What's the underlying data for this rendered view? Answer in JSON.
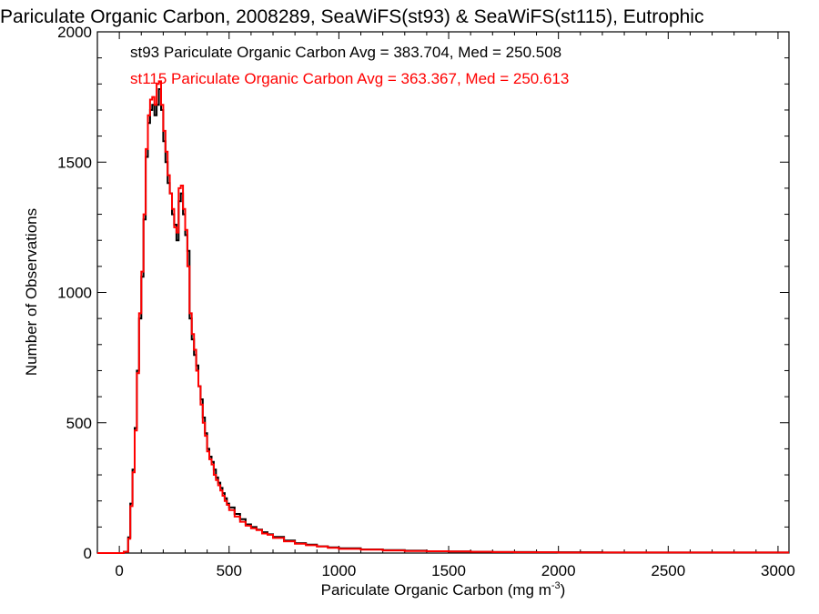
{
  "chart_data": {
    "type": "line",
    "step": true,
    "title": "Pariculate Organic Carbon, 2008289, SeaWiFS(st93) & SeaWiFS(st115), Eutrophic",
    "xlabel": "Pariculate Organic Carbon (mg m",
    "xlabel_sup": "-3",
    "xlabel_close": ")",
    "ylabel": "Number of Observations",
    "xlim": [
      -100,
      3050
    ],
    "ylim": [
      0,
      2000
    ],
    "xticks": [
      0,
      500,
      1000,
      1500,
      2000,
      2500,
      3000
    ],
    "yticks": [
      0,
      500,
      1000,
      1500,
      2000
    ],
    "grid": false,
    "x": [
      -100,
      0,
      20,
      40,
      50,
      60,
      70,
      80,
      90,
      100,
      110,
      120,
      130,
      140,
      150,
      160,
      170,
      180,
      190,
      200,
      210,
      220,
      230,
      240,
      250,
      260,
      270,
      280,
      290,
      300,
      310,
      320,
      330,
      340,
      350,
      360,
      370,
      380,
      390,
      400,
      410,
      420,
      430,
      440,
      450,
      460,
      470,
      480,
      490,
      500,
      525,
      550,
      575,
      600,
      625,
      650,
      675,
      700,
      750,
      800,
      850,
      900,
      950,
      1000,
      1100,
      1200,
      1300,
      1400,
      1500,
      1600,
      1700,
      1800,
      1900,
      2000,
      2200,
      2400,
      2600,
      2800,
      3050
    ],
    "series": [
      {
        "name": "st93",
        "label": "st93 Pariculate Organic Carbon Avg = 383.704, Med = 250.508",
        "color": "#000000",
        "values": [
          0,
          0,
          5,
          60,
          190,
          320,
          480,
          700,
          900,
          1060,
          1280,
          1520,
          1650,
          1700,
          1720,
          1680,
          1720,
          1780,
          1700,
          1580,
          1500,
          1420,
          1380,
          1300,
          1260,
          1200,
          1350,
          1380,
          1300,
          1220,
          1160,
          900,
          820,
          760,
          720,
          640,
          590,
          520,
          460,
          400,
          370,
          350,
          320,
          290,
          270,
          250,
          230,
          210,
          190,
          175,
          150,
          130,
          110,
          100,
          90,
          80,
          72,
          62,
          48,
          38,
          32,
          26,
          22,
          18,
          14,
          11,
          9,
          7,
          6,
          5,
          4,
          4,
          3,
          3,
          2,
          2,
          2,
          2,
          2
        ]
      },
      {
        "name": "st115",
        "label": "st115 Pariculate Organic Carbon Avg = 363.367, Med = 250.613",
        "color": "#ff0000",
        "values": [
          0,
          0,
          5,
          55,
          180,
          310,
          470,
          690,
          920,
          1080,
          1300,
          1550,
          1680,
          1740,
          1750,
          1720,
          1800,
          1810,
          1720,
          1620,
          1540,
          1450,
          1380,
          1320,
          1250,
          1230,
          1400,
          1410,
          1320,
          1240,
          1100,
          920,
          840,
          780,
          700,
          640,
          570,
          500,
          450,
          390,
          360,
          340,
          300,
          280,
          260,
          240,
          220,
          200,
          185,
          165,
          140,
          120,
          105,
          95,
          88,
          75,
          70,
          58,
          45,
          36,
          30,
          25,
          20,
          16,
          13,
          10,
          8,
          7,
          6,
          5,
          4,
          3,
          3,
          2,
          2,
          2,
          2,
          2,
          2
        ]
      }
    ]
  }
}
